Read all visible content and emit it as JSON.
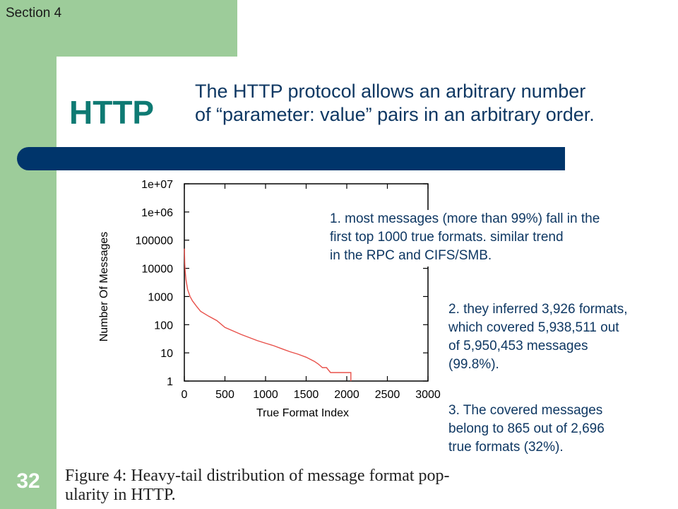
{
  "slide": {
    "section": "Section 4",
    "title": "HTTP",
    "header_lines": [
      "The HTTP protocol allows an arbitrary number",
      "of “parameter: value” pairs in an arbitrary order."
    ],
    "slide_number": "32",
    "caption_lines": [
      "Figure 4: Heavy-tail distribution of message format pop-",
      "ularity in HTTP."
    ],
    "notes": [
      [
        "1. most messages (more than 99%) fall in the",
        "first top 1000 true formats. similar trend",
        "in the RPC and CIFS/SMB."
      ],
      [
        "2. they inferred 3,926 formats,",
        "which covered 5,938,511 out",
        "of 5,950,453 messages",
        "(99.8%)."
      ],
      [
        "3. The covered messages",
        "belong to 865 out of 2,696",
        "true formats (32%)."
      ]
    ],
    "colors": {
      "accent_green": "#9dcc9a",
      "bar_blue": "#00356b",
      "title_teal": "#0e7a73",
      "text_navy": "#0f3863"
    }
  },
  "chart_data": {
    "type": "line",
    "xlabel": "True Format Index",
    "ylabel": "Number Of Messages",
    "xlim": [
      0,
      3000
    ],
    "ylim": [
      1,
      10000000
    ],
    "yscale": "log",
    "x_ticks": [
      "0",
      "500",
      "1000",
      "1500",
      "2000",
      "2500",
      "3000"
    ],
    "y_ticks": [
      "1e+07",
      "1e+06",
      "100000",
      "10000",
      "1000",
      "100",
      "10",
      "1"
    ],
    "series": [
      {
        "color": "#e8504a",
        "x": [
          1,
          5,
          10,
          20,
          40,
          70,
          100,
          150,
          200,
          300,
          400,
          500,
          600,
          700,
          800,
          900,
          1000,
          1100,
          1200,
          1300,
          1400,
          1500,
          1600,
          1650,
          1700,
          1750,
          1800,
          2000,
          2050,
          2050
        ],
        "y": [
          50000,
          15000,
          8000,
          4000,
          1800,
          1000,
          700,
          450,
          300,
          200,
          140,
          80,
          60,
          45,
          35,
          27,
          22,
          18,
          14,
          11,
          9,
          7,
          5,
          4,
          3,
          3,
          2,
          2,
          2,
          1
        ]
      }
    ]
  }
}
